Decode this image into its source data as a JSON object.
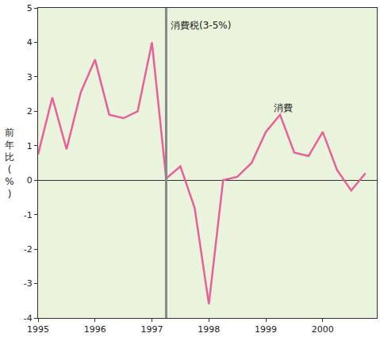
{
  "chart_data": {
    "type": "line",
    "y_label": "前年比(%)",
    "x": [
      1995,
      1995.25,
      1995.5,
      1995.75,
      1996,
      1996.25,
      1996.5,
      1996.75,
      1997,
      1997.25,
      1997.5,
      1997.75,
      1998,
      1998.25,
      1998.5,
      1998.75,
      1999,
      1999.25,
      1999.5,
      1999.75,
      2000,
      2000.25,
      2000.5,
      2000.75
    ],
    "series": [
      {
        "name": "消費",
        "color": "#e8609a",
        "values": [
          0.75,
          2.4,
          0.9,
          2.55,
          3.5,
          1.9,
          1.8,
          2.0,
          4.0,
          0.05,
          0.4,
          -0.8,
          -3.6,
          0.0,
          0.1,
          0.5,
          1.4,
          1.9,
          0.8,
          0.7,
          1.4,
          0.3,
          -0.3,
          0.2
        ]
      }
    ],
    "vlines": [
      1997.25
    ],
    "annotations": [
      {
        "text": "消費税(3-5%)",
        "x": 1997.25,
        "y": 4.5
      },
      {
        "text": "消費",
        "x": 1999.3,
        "y": 2.1
      }
    ],
    "xlim": [
      1995,
      2000.95
    ],
    "xticks": [
      1995,
      1996,
      1997,
      1998,
      1999,
      2000
    ],
    "ylim": [
      -4,
      5
    ],
    "yticks": [
      -4,
      -3,
      -2,
      -1,
      0,
      1,
      2,
      3,
      4,
      5
    ],
    "grid": false,
    "legend": "none"
  }
}
